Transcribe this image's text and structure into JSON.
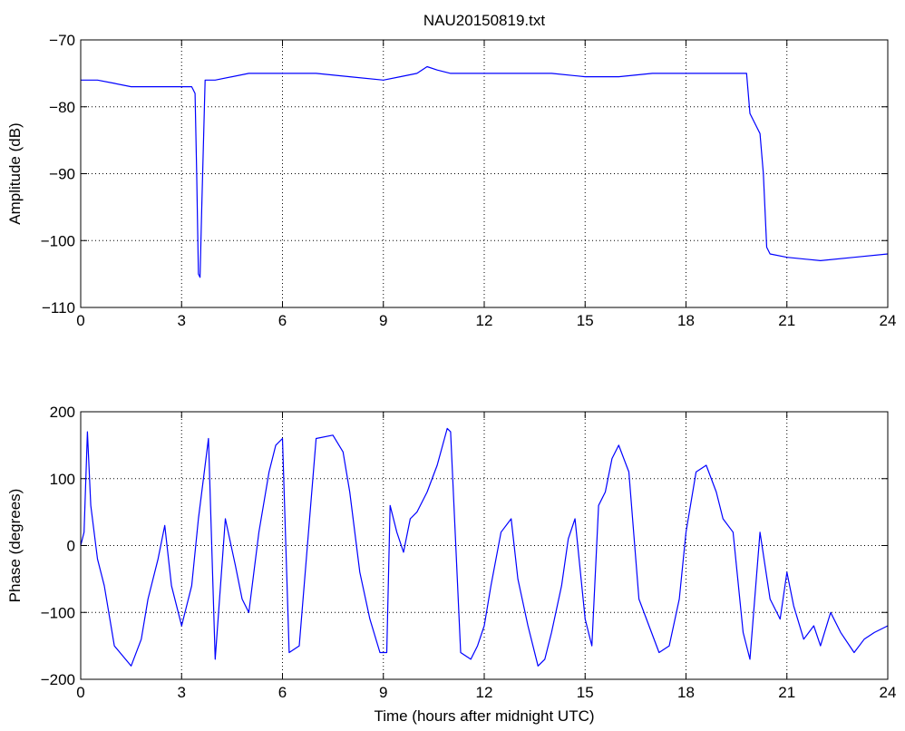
{
  "figure": {
    "title": "NAU20150819.txt"
  },
  "chart_data": [
    {
      "type": "line",
      "xlabel": "",
      "ylabel": "Amplitude (dB)",
      "xlim": [
        0,
        24
      ],
      "ylim": [
        -110,
        -70
      ],
      "xticks": [
        0,
        3,
        6,
        9,
        12,
        15,
        18,
        21,
        24
      ],
      "yticks": [
        -110,
        -100,
        -90,
        -80,
        -70
      ],
      "grid": true,
      "color": "#0000ff",
      "series": [
        {
          "x": [
            0,
            0.5,
            1,
            1.5,
            2,
            2.5,
            3,
            3.3,
            3.4,
            3.45,
            3.5,
            3.55,
            3.6,
            3.7,
            4,
            5,
            6,
            6.5,
            7,
            8,
            9,
            9.5,
            10,
            10.3,
            10.6,
            11,
            12,
            13,
            14,
            15,
            16,
            17,
            18,
            19,
            19.5,
            19.8,
            19.9,
            20,
            20.1,
            20.2,
            20.3,
            20.4,
            20.5,
            21,
            22,
            23,
            24
          ],
          "y": [
            -76,
            -76,
            -76.5,
            -77,
            -77,
            -77,
            -77,
            -77,
            -78,
            -90,
            -105,
            -105.5,
            -95,
            -76,
            -76,
            -75,
            -75,
            -75,
            -75,
            -75.5,
            -76,
            -75.5,
            -75,
            -74,
            -74.5,
            -75,
            -75,
            -75,
            -75,
            -75.5,
            -75.5,
            -75,
            -75,
            -75,
            -75,
            -75,
            -81,
            -82,
            -83,
            -84,
            -90,
            -101,
            -102,
            -102.5,
            -103,
            -102.5,
            -102
          ]
        }
      ]
    },
    {
      "type": "line",
      "xlabel": "Time (hours after midnight UTC)",
      "ylabel": "Phase (degrees)",
      "xlim": [
        0,
        24
      ],
      "ylim": [
        -200,
        200
      ],
      "xticks": [
        0,
        3,
        6,
        9,
        12,
        15,
        18,
        21,
        24
      ],
      "yticks": [
        -200,
        -100,
        0,
        100,
        200
      ],
      "grid": true,
      "color": "#0000ff",
      "series": [
        {
          "x": [
            0,
            0.1,
            0.2,
            0.3,
            0.5,
            0.7,
            0.9,
            1.0,
            1.5,
            1.8,
            2.0,
            2.3,
            2.5,
            2.7,
            3.0,
            3.3,
            3.5,
            3.8,
            4.0,
            4.3,
            4.6,
            4.8,
            5.0,
            5.3,
            5.6,
            5.8,
            6.0,
            6.2,
            6.5,
            7.0,
            7.5,
            7.8,
            8.0,
            8.3,
            8.6,
            8.9,
            9.1,
            9.2,
            9.4,
            9.6,
            9.8,
            10.0,
            10.3,
            10.6,
            10.9,
            11.0,
            11.3,
            11.6,
            11.8,
            12.0,
            12.2,
            12.5,
            12.8,
            13.0,
            13.3,
            13.6,
            13.8,
            14.0,
            14.3,
            14.5,
            14.7,
            15.0,
            15.2,
            15.4,
            15.6,
            15.8,
            16.0,
            16.3,
            16.6,
            16.9,
            17.2,
            17.5,
            17.8,
            18.0,
            18.3,
            18.6,
            18.9,
            19.1,
            19.4,
            19.7,
            19.9,
            20.2,
            20.5,
            20.8,
            21.0,
            21.2,
            21.5,
            21.8,
            22.0,
            22.3,
            22.6,
            23.0,
            23.3,
            23.6,
            24.0
          ],
          "y": [
            0,
            20,
            170,
            60,
            -20,
            -60,
            -120,
            -150,
            -180,
            -140,
            -80,
            -20,
            30,
            -60,
            -120,
            -60,
            40,
            160,
            -170,
            40,
            -30,
            -80,
            -100,
            20,
            110,
            150,
            160,
            -160,
            -150,
            160,
            165,
            140,
            80,
            -40,
            -110,
            -160,
            -160,
            60,
            20,
            -10,
            40,
            50,
            80,
            120,
            175,
            170,
            -160,
            -170,
            -150,
            -120,
            -60,
            20,
            40,
            -50,
            -120,
            -180,
            -170,
            -130,
            -60,
            10,
            40,
            -110,
            -150,
            60,
            80,
            130,
            150,
            110,
            -80,
            -120,
            -160,
            -150,
            -80,
            20,
            110,
            120,
            80,
            40,
            20,
            -130,
            -170,
            20,
            -80,
            -110,
            -40,
            -90,
            -140,
            -120,
            -150,
            -100,
            -130,
            -160,
            -140,
            -130,
            -120
          ]
        }
      ]
    }
  ]
}
